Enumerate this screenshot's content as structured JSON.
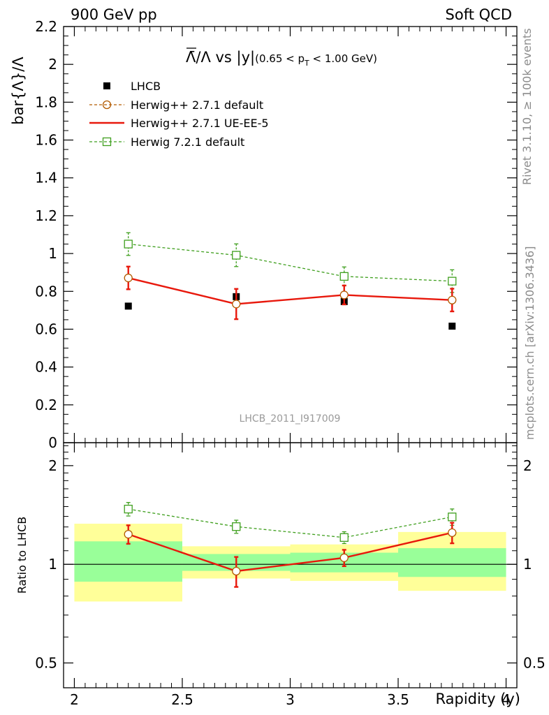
{
  "header": {
    "left": "900 GeV pp",
    "right": "Soft QCD"
  },
  "side_labels": {
    "rivet": "Rivet 3.1.10, ≥ 100k events",
    "mcplots": "mcplots.cern.ch [arXiv:1306.3436]"
  },
  "analysis_id": "LHCB_2011_I917009",
  "chart_data": [
    {
      "type": "scatter",
      "title": "Λ̄/Λ vs |y|(0.65 < pT < 1.00 GeV)",
      "title_main": "Λ̄/Λ vs |y|",
      "title_cut_a": "(0.65 < p",
      "title_cut_sub": "T",
      "title_cut_b": " < 1.00 GeV)",
      "ylabel": "bar{Λ}/Λ",
      "xlim": [
        1.95,
        4.05
      ],
      "ylim": [
        0,
        2.2
      ],
      "y_ticks": [
        "0",
        "0.2",
        "0.4",
        "0.6",
        "0.8",
        "1",
        "1.2",
        "1.4",
        "1.6",
        "1.8",
        "2",
        "2.2"
      ],
      "legend_position": "top-left",
      "x": [
        2.25,
        2.75,
        3.25,
        3.75
      ],
      "series": [
        {
          "name": "LHCB",
          "style": "data",
          "color": "#000000",
          "values": [
            0.722,
            0.772,
            0.746,
            0.616
          ],
          "err": [
            0.0,
            0.0,
            0.0,
            0.0
          ]
        },
        {
          "name": "Herwig++ 2.7.1 default",
          "style": "circle-dashed",
          "color": "#b25a00",
          "values": [
            0.871,
            0.733,
            0.781,
            0.754
          ],
          "err": [
            0.06,
            0.08,
            0.05,
            0.06
          ]
        },
        {
          "name": "Herwig++ 2.7.1 UE-EE-5",
          "style": "solid",
          "color": "#e8180c",
          "values": [
            0.871,
            0.733,
            0.781,
            0.754
          ],
          "err": [
            0.06,
            0.08,
            0.05,
            0.06
          ]
        },
        {
          "name": "Herwig 7.2.1 default",
          "style": "square-dashed",
          "color": "#3f9f1e",
          "values": [
            1.05,
            0.991,
            0.879,
            0.854
          ],
          "err": [
            0.06,
            0.06,
            0.05,
            0.06
          ]
        }
      ]
    },
    {
      "type": "scatter",
      "ylabel": "Ratio to LHCB",
      "xlabel": "Rapidity (y)",
      "xlim": [
        1.95,
        4.05
      ],
      "ylim": [
        0.42,
        2.35
      ],
      "y_scale": "log",
      "y_ticks": [
        "0.5",
        "1",
        "2"
      ],
      "x_ticks": [
        "2",
        "2.5",
        "3",
        "3.5",
        "4"
      ],
      "x": [
        2.25,
        2.75,
        3.25,
        3.75
      ],
      "bands": [
        {
          "x0": 2.0,
          "x1": 2.5,
          "inner": [
            0.885,
            1.175
          ],
          "outer": [
            0.77,
            1.33
          ]
        },
        {
          "x0": 2.5,
          "x1": 3.0,
          "inner": [
            0.955,
            1.075
          ],
          "outer": [
            0.905,
            1.135
          ]
        },
        {
          "x0": 3.0,
          "x1": 3.5,
          "inner": [
            0.945,
            1.085
          ],
          "outer": [
            0.89,
            1.15
          ]
        },
        {
          "x0": 3.5,
          "x1": 4.0,
          "inner": [
            0.915,
            1.12
          ],
          "outer": [
            0.83,
            1.255
          ]
        }
      ],
      "series": [
        {
          "name": "Herwig++ 2.7.1 UE-EE-5",
          "color": "#e8180c",
          "values": [
            1.235,
            0.953,
            1.047,
            1.249
          ],
          "err": [
            0.08,
            0.1,
            0.06,
            0.09
          ]
        },
        {
          "name": "Herwig 7.2.1 default",
          "color": "#3f9f1e",
          "values": [
            1.474,
            1.303,
            1.207,
            1.395
          ],
          "err": [
            0.07,
            0.06,
            0.05,
            0.08
          ]
        }
      ]
    }
  ]
}
